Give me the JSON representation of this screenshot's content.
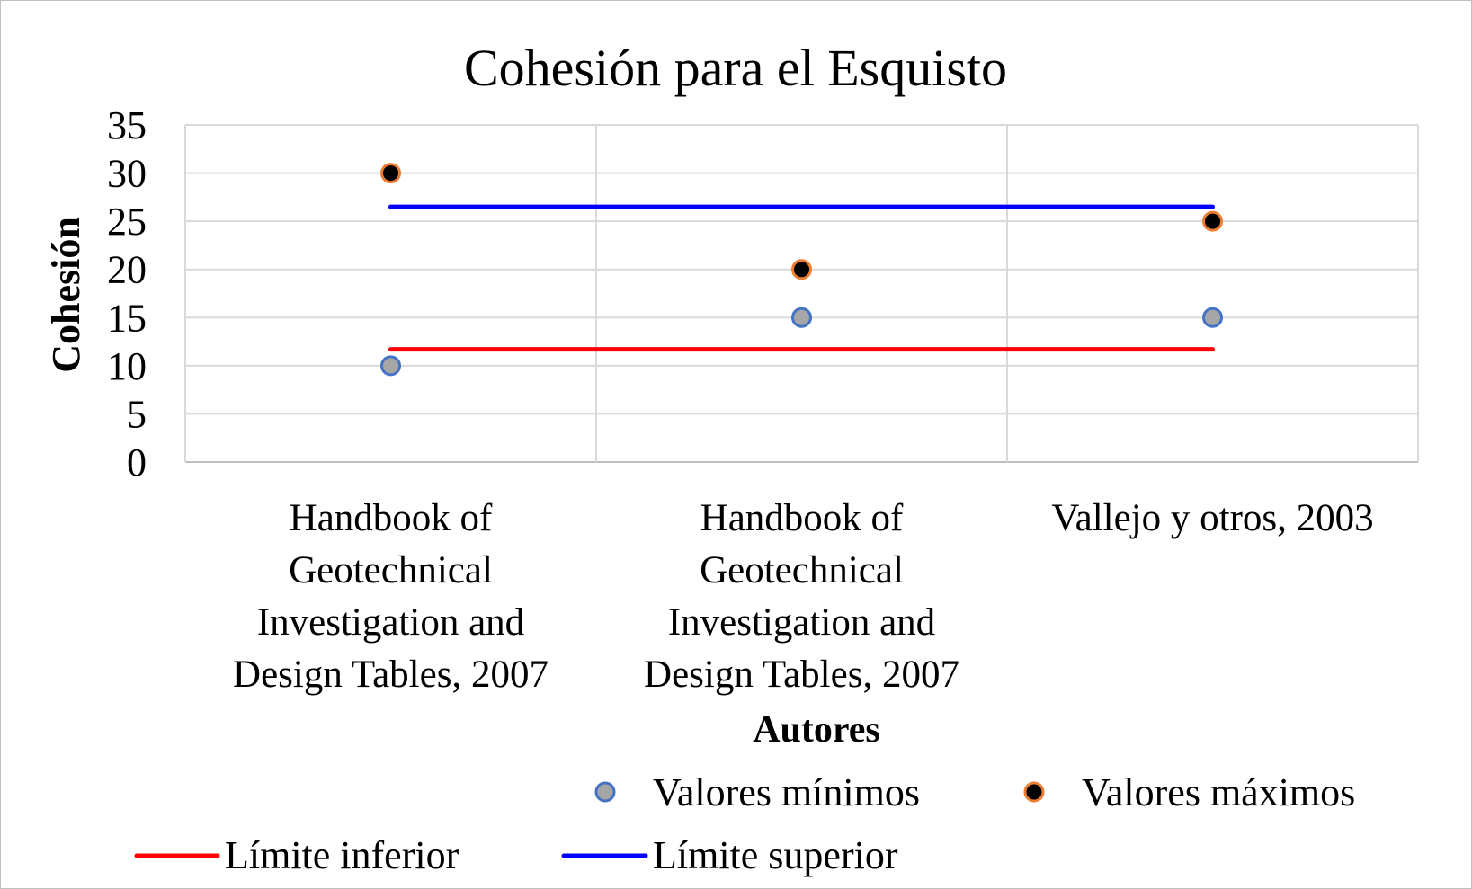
{
  "chart_data": {
    "type": "scatter",
    "title": "Cohesión para el Esquisto",
    "xlabel": "Autores",
    "ylabel": "Cohesión",
    "ylim": [
      0,
      35
    ],
    "yticks": [
      "0",
      "5",
      "10",
      "15",
      "20",
      "25",
      "30",
      "35"
    ],
    "grid": true,
    "legend_position": "bottom",
    "categories": [
      [
        "Handbook of",
        "Geotechnical",
        "Investigation and",
        "Design Tables, 2007"
      ],
      [
        "Handbook of",
        "Geotechnical",
        "Investigation and",
        "Design Tables, 2007"
      ],
      [
        "Vallejo y otros, 2003"
      ]
    ],
    "series": [
      {
        "name": "Valores mínimos",
        "kind": "marker",
        "values": [
          10,
          15,
          15
        ],
        "fill": "#a6a6a6",
        "stroke": "#4472c4"
      },
      {
        "name": "Valores máximos",
        "kind": "marker",
        "values": [
          30,
          20,
          25
        ],
        "fill": "#000000",
        "stroke": "#ed7d31"
      },
      {
        "name": "Límite inferior",
        "kind": "line",
        "values": [
          11.7,
          11.7,
          11.7
        ],
        "color": "#ff0000"
      },
      {
        "name": "Límite superior",
        "kind": "line",
        "values": [
          26.5,
          26.5,
          26.5
        ],
        "color": "#0000ff"
      }
    ]
  }
}
